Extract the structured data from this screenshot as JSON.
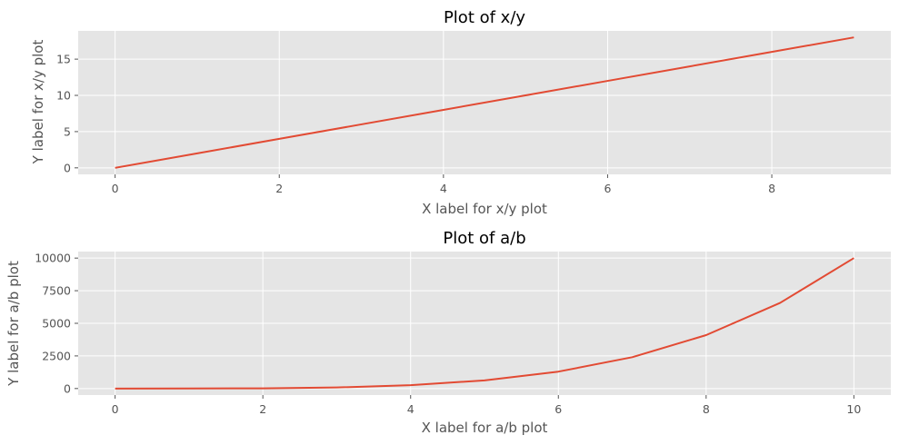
{
  "chart_data": [
    {
      "type": "line",
      "title": "Plot of x/y",
      "xlabel": "X label for x/y plot",
      "ylabel": "Y label for x/y plot",
      "xlim": [
        -0.45,
        9.45
      ],
      "ylim": [
        -0.9,
        18.9
      ],
      "xticks": [
        0,
        2,
        4,
        6,
        8
      ],
      "yticks": [
        0,
        5,
        10,
        15
      ],
      "grid": true,
      "background": "#e5e5e5",
      "series": [
        {
          "color": "#e24a33",
          "x": [
            0,
            1,
            2,
            3,
            4,
            5,
            6,
            7,
            8,
            9
          ],
          "y": [
            0,
            2,
            4,
            6,
            8,
            10,
            12,
            14,
            16,
            18
          ]
        }
      ]
    },
    {
      "type": "line",
      "title": "Plot of a/b",
      "xlabel": "X label for a/b plot",
      "ylabel": "Y label for a/b plot",
      "xlim": [
        -0.5,
        10.5
      ],
      "ylim": [
        -500,
        10500
      ],
      "xticks": [
        0,
        2,
        4,
        6,
        8,
        10
      ],
      "yticks": [
        0,
        2500,
        5000,
        7500,
        10000
      ],
      "grid": true,
      "background": "#e5e5e5",
      "series": [
        {
          "color": "#e24a33",
          "x": [
            0,
            1,
            2,
            3,
            4,
            5,
            6,
            7,
            8,
            9,
            10
          ],
          "y": [
            0,
            1,
            16,
            81,
            256,
            625,
            1296,
            2401,
            4096,
            6561,
            10000
          ]
        }
      ]
    }
  ]
}
